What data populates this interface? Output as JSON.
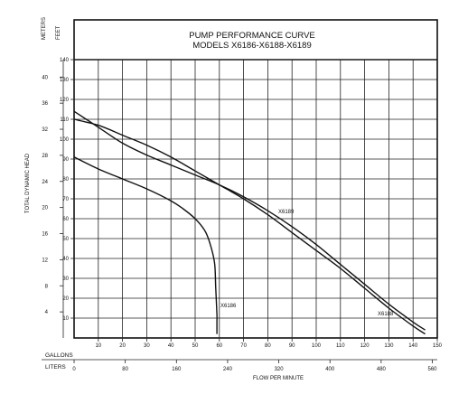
{
  "chart_data": {
    "type": "line",
    "title": "PUMP PERFORMANCE CURVE",
    "subtitle": "MODELS X6186-X6188-X6189",
    "ylabel": "TOTAL DYNAMIC HEAD",
    "xlabel": "FLOW PER MINUTE",
    "left_axis_units": [
      "METERS",
      "FEET"
    ],
    "bottom_axis_units": [
      "GALLONS",
      "LITERS"
    ],
    "feet_ticks": [
      "10",
      "20",
      "30",
      "40",
      "50",
      "60",
      "70",
      "80",
      "90",
      "100",
      "110",
      "120",
      "130",
      "140"
    ],
    "meters_ticks": [
      "4",
      "8",
      "12",
      "16",
      "20",
      "24",
      "28",
      "32",
      "36",
      "40"
    ],
    "gallons_ticks": [
      "10",
      "20",
      "30",
      "40",
      "50",
      "60",
      "70",
      "80",
      "90",
      "100",
      "110",
      "120",
      "130",
      "140",
      "150"
    ],
    "liters_ticks": [
      "0",
      "80",
      "160",
      "240",
      "320",
      "400",
      "480",
      "560"
    ],
    "xlim_gallons": [
      0,
      150
    ],
    "ylim_feet": [
      0,
      140
    ],
    "grid": true,
    "series": [
      {
        "name": "X6186",
        "x": [
          0,
          10,
          20,
          30,
          40,
          45,
          50,
          54,
          56,
          58,
          58.5,
          59,
          59,
          59
        ],
        "y": [
          91,
          85,
          80,
          75,
          69,
          65,
          60,
          54,
          48,
          38,
          25,
          12,
          8,
          2
        ]
      },
      {
        "name": "X6188",
        "x": [
          0,
          10,
          20,
          30,
          40,
          50,
          60,
          70,
          80,
          90,
          100,
          110,
          120,
          130,
          140,
          145
        ],
        "y": [
          110,
          107,
          102,
          97,
          91,
          84,
          77,
          70,
          62,
          53,
          44,
          35,
          25,
          15,
          6,
          2
        ]
      },
      {
        "name": "X6189",
        "x": [
          0,
          10,
          20,
          30,
          40,
          50,
          60,
          70,
          80,
          90,
          100,
          110,
          120,
          130,
          140,
          145
        ],
        "y": [
          114,
          106,
          98,
          92,
          87,
          82,
          77,
          71,
          64,
          56,
          47,
          37,
          27,
          17,
          8,
          4
        ]
      }
    ],
    "label_text": {
      "X6186": "X6186",
      "X6188": "X6188",
      "X6189": "X6189"
    }
  }
}
